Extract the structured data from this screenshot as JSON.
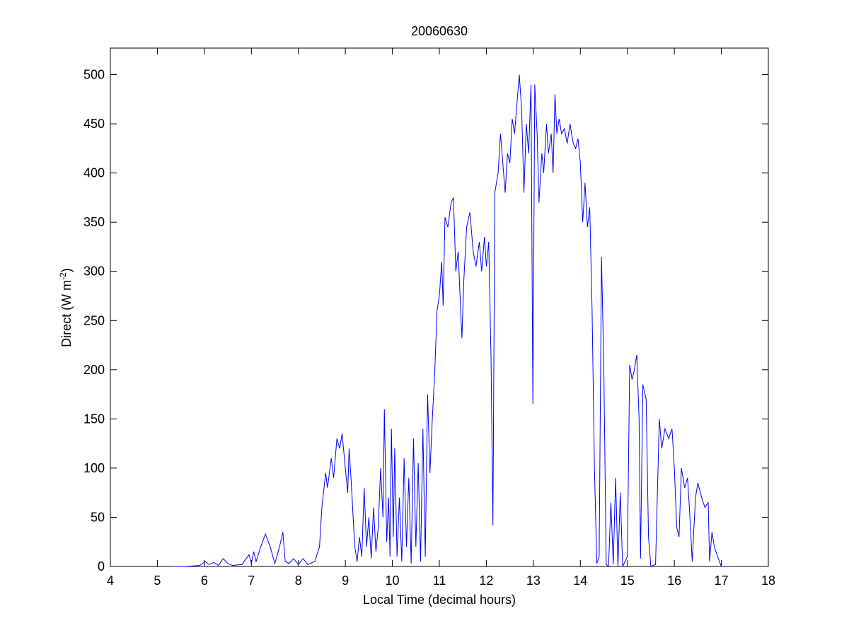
{
  "chart_data": {
    "type": "line",
    "title": "20060630",
    "xlabel": "Local Time (decimal hours)",
    "ylabel_parts": [
      "Direct (W m",
      "-2",
      ")"
    ],
    "color": "#0000ff",
    "xlim": [
      4,
      18
    ],
    "xticks": [
      4,
      5,
      6,
      7,
      8,
      9,
      10,
      11,
      12,
      13,
      14,
      15,
      16,
      17,
      18
    ],
    "ylim": [
      0,
      527
    ],
    "yticks": [
      0,
      50,
      100,
      150,
      200,
      250,
      300,
      350,
      400,
      450,
      500
    ],
    "x": [
      5.3,
      5.6,
      5.9,
      6.02,
      6.1,
      6.2,
      6.3,
      6.4,
      6.5,
      6.6,
      6.8,
      6.95,
      7.0,
      7.05,
      7.1,
      7.2,
      7.3,
      7.4,
      7.5,
      7.6,
      7.67,
      7.72,
      7.8,
      7.9,
      8.0,
      8.1,
      8.2,
      8.35,
      8.45,
      8.5,
      8.58,
      8.62,
      8.7,
      8.75,
      8.82,
      8.88,
      8.93,
      9.0,
      9.05,
      9.08,
      9.12,
      9.2,
      9.25,
      9.3,
      9.35,
      9.4,
      9.45,
      9.5,
      9.55,
      9.6,
      9.65,
      9.7,
      9.75,
      9.8,
      9.83,
      9.88,
      9.92,
      9.95,
      9.98,
      10.02,
      10.05,
      10.1,
      10.15,
      10.2,
      10.25,
      10.3,
      10.35,
      10.4,
      10.45,
      10.5,
      10.55,
      10.6,
      10.65,
      10.7,
      10.75,
      10.8,
      10.85,
      10.9,
      10.95,
      11.0,
      11.05,
      11.08,
      11.12,
      11.18,
      11.25,
      11.3,
      11.35,
      11.4,
      11.48,
      11.52,
      11.58,
      11.65,
      11.72,
      11.78,
      11.85,
      11.9,
      11.96,
      12.0,
      12.05,
      12.1,
      12.14,
      12.18,
      12.25,
      12.3,
      12.35,
      12.4,
      12.45,
      12.5,
      12.55,
      12.6,
      12.65,
      12.7,
      12.75,
      12.8,
      12.85,
      12.9,
      12.95,
      12.99,
      13.03,
      13.08,
      13.12,
      13.18,
      13.22,
      13.28,
      13.32,
      13.38,
      13.42,
      13.46,
      13.5,
      13.55,
      13.6,
      13.66,
      13.72,
      13.78,
      13.85,
      13.9,
      13.95,
      14.0,
      14.05,
      14.1,
      14.15,
      14.2,
      14.25,
      14.3,
      14.35,
      14.4,
      14.45,
      14.5,
      14.55,
      14.6,
      14.65,
      14.7,
      14.75,
      14.8,
      14.85,
      14.9,
      15.0,
      15.05,
      15.1,
      15.15,
      15.2,
      15.25,
      15.28,
      15.33,
      15.4,
      15.45,
      15.5,
      15.6,
      15.68,
      15.73,
      15.8,
      15.88,
      15.95,
      16.0,
      16.05,
      16.1,
      16.15,
      16.22,
      16.28,
      16.32,
      16.38,
      16.45,
      16.5,
      16.58,
      16.65,
      16.72,
      16.75,
      16.8,
      16.85,
      16.92,
      17.0,
      17.2
    ],
    "values": [
      0,
      0,
      1,
      5,
      2,
      4,
      1,
      8,
      3,
      1,
      2,
      12,
      3,
      15,
      5,
      20,
      33,
      20,
      3,
      20,
      35,
      5,
      3,
      8,
      2,
      8,
      2,
      5,
      20,
      60,
      95,
      80,
      110,
      90,
      130,
      120,
      135,
      100,
      75,
      120,
      90,
      20,
      5,
      30,
      10,
      80,
      20,
      50,
      8,
      60,
      15,
      40,
      100,
      50,
      160,
      25,
      70,
      10,
      140,
      30,
      120,
      10,
      70,
      5,
      110,
      20,
      90,
      3,
      130,
      20,
      105,
      5,
      140,
      10,
      175,
      95,
      150,
      195,
      260,
      275,
      310,
      265,
      355,
      345,
      370,
      375,
      300,
      320,
      232,
      290,
      345,
      360,
      320,
      305,
      330,
      300,
      335,
      305,
      330,
      210,
      42,
      380,
      400,
      440,
      410,
      380,
      420,
      410,
      455,
      440,
      470,
      500,
      465,
      380,
      450,
      420,
      490,
      165,
      490,
      440,
      370,
      420,
      400,
      450,
      420,
      440,
      400,
      480,
      440,
      455,
      440,
      445,
      430,
      450,
      430,
      425,
      435,
      410,
      350,
      390,
      345,
      365,
      260,
      100,
      3,
      10,
      315,
      200,
      2,
      0,
      65,
      2,
      90,
      0,
      75,
      0,
      10,
      205,
      190,
      200,
      215,
      150,
      8,
      185,
      170,
      30,
      0,
      2,
      150,
      120,
      140,
      130,
      140,
      100,
      40,
      30,
      100,
      80,
      90,
      60,
      5,
      70,
      85,
      70,
      60,
      65,
      5,
      35,
      20,
      10,
      0,
      0
    ]
  }
}
